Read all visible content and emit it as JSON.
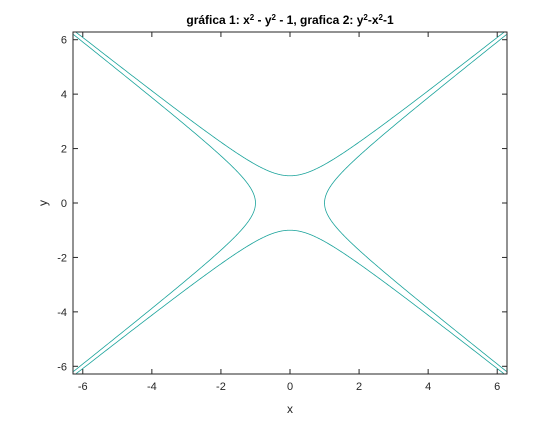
{
  "chart_data": {
    "type": "line",
    "title_parts": [
      {
        "text": "gráfica 1: x",
        "sup": false
      },
      {
        "text": "2",
        "sup": true
      },
      {
        "text": " - y",
        "sup": false
      },
      {
        "text": "2",
        "sup": true
      },
      {
        "text": " - 1, grafica 2: y",
        "sup": false
      },
      {
        "text": "2",
        "sup": true
      },
      {
        "text": "-x",
        "sup": false
      },
      {
        "text": "2",
        "sup": true
      },
      {
        "text": "-1",
        "sup": false
      }
    ],
    "xlabel": "x",
    "ylabel": "y",
    "xlim": [
      -6.2832,
      6.2832
    ],
    "ylim": [
      -6.2832,
      6.2832
    ],
    "xticks": [
      -6,
      -4,
      -2,
      0,
      2,
      4,
      6
    ],
    "yticks": [
      -6,
      -4,
      -2,
      0,
      2,
      4,
      6
    ],
    "xtick_labels": [
      "-6",
      "-4",
      "-2",
      "0",
      "2",
      "4",
      "6"
    ],
    "ytick_labels": [
      "-6",
      "-4",
      "-2",
      "0",
      "2",
      "4",
      "6"
    ],
    "grid": false,
    "legend": "none",
    "series": [
      {
        "equation": "x^2 - y^2 - 1 = 0",
        "type": "implicit-hyperbola-horizontal",
        "color": "#1aa39b"
      },
      {
        "equation": "y^2 - x^2 - 1 = 0",
        "type": "implicit-hyperbola-vertical",
        "color": "#1aa39b"
      }
    ],
    "colors": {
      "axes": "#262626",
      "background": "#ffffff"
    }
  }
}
